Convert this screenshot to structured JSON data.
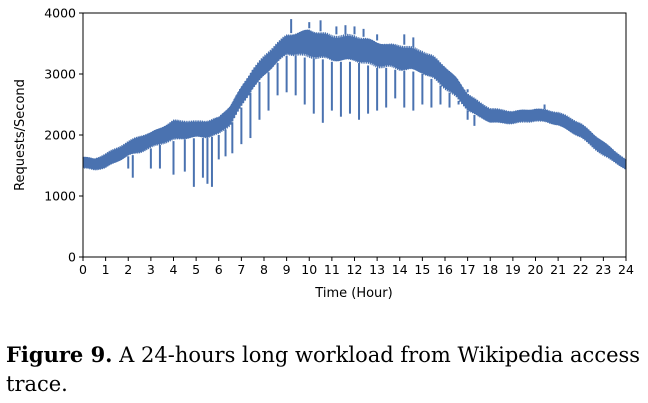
{
  "chart_data": {
    "type": "line",
    "title": "",
    "xlabel": "Time (Hour)",
    "ylabel": "Requests/Second",
    "xlim": [
      0,
      24
    ],
    "ylim": [
      0,
      4000
    ],
    "x_ticks": [
      "0",
      "1",
      "2",
      "3",
      "4",
      "5",
      "6",
      "7",
      "8",
      "9",
      "10",
      "11",
      "12",
      "13",
      "14",
      "15",
      "16",
      "17",
      "18",
      "19",
      "20",
      "21",
      "22",
      "23",
      "24"
    ],
    "y_ticks": [
      "0",
      "1000",
      "2000",
      "3000",
      "4000"
    ],
    "grid": false,
    "color": "#4a72b0",
    "series": [
      {
        "name": "",
        "x": [
          0,
          0.5,
          1,
          1.5,
          2,
          2.5,
          3,
          3.5,
          4,
          4.5,
          5,
          5.5,
          6,
          6.5,
          7,
          7.5,
          8,
          8.5,
          9,
          9.5,
          10,
          10.5,
          11,
          11.5,
          12,
          12.5,
          13,
          13.5,
          14,
          14.5,
          15,
          15.5,
          16,
          16.5,
          17,
          17.5,
          18,
          18.5,
          19,
          19.5,
          20,
          20.5,
          21,
          21.5,
          22,
          22.5,
          23,
          23.5,
          24
        ],
        "upper": [
          1650,
          1620,
          1700,
          1800,
          1900,
          2000,
          2050,
          2150,
          2250,
          2250,
          2230,
          2250,
          2300,
          2500,
          2800,
          3100,
          3300,
          3500,
          3650,
          3700,
          3750,
          3700,
          3650,
          3650,
          3650,
          3600,
          3550,
          3500,
          3500,
          3450,
          3400,
          3300,
          3150,
          2950,
          2700,
          2550,
          2450,
          2420,
          2400,
          2420,
          2440,
          2420,
          2380,
          2300,
          2200,
          2050,
          1900,
          1750,
          1600
        ],
        "lower": [
          1450,
          1420,
          1450,
          1550,
          1650,
          1700,
          1780,
          1850,
          1900,
          1930,
          1950,
          1950,
          2000,
          2150,
          2450,
          2750,
          2950,
          3150,
          3300,
          3300,
          3250,
          3250,
          3200,
          3200,
          3200,
          3150,
          3100,
          3100,
          3050,
          3050,
          3000,
          2900,
          2750,
          2600,
          2400,
          2280,
          2200,
          2180,
          2180,
          2200,
          2220,
          2200,
          2150,
          2050,
          1950,
          1800,
          1650,
          1550,
          1420
        ],
        "dips": [
          [
            2,
            1450
          ],
          [
            2.2,
            1300
          ],
          [
            3,
            1450
          ],
          [
            3.4,
            1450
          ],
          [
            4,
            1350
          ],
          [
            4.5,
            1400
          ],
          [
            4.9,
            1150
          ],
          [
            5.3,
            1300
          ],
          [
            5.5,
            1200
          ],
          [
            5.7,
            1150
          ],
          [
            6,
            1600
          ],
          [
            6.3,
            1650
          ],
          [
            6.6,
            1700
          ],
          [
            7,
            1850
          ],
          [
            7.4,
            1950
          ],
          [
            7.8,
            2250
          ],
          [
            8.2,
            2400
          ],
          [
            8.6,
            2650
          ],
          [
            9,
            2700
          ],
          [
            9.4,
            2650
          ],
          [
            9.8,
            2500
          ],
          [
            10.2,
            2350
          ],
          [
            10.6,
            2200
          ],
          [
            11,
            2400
          ],
          [
            11.4,
            2300
          ],
          [
            11.8,
            2350
          ],
          [
            12.2,
            2250
          ],
          [
            12.6,
            2350
          ],
          [
            13,
            2400
          ],
          [
            13.4,
            2450
          ],
          [
            13.8,
            2600
          ],
          [
            14.2,
            2450
          ],
          [
            14.6,
            2400
          ],
          [
            15,
            2500
          ],
          [
            15.4,
            2450
          ],
          [
            15.8,
            2500
          ],
          [
            16.2,
            2450
          ],
          [
            16.6,
            2500
          ],
          [
            17,
            2250
          ],
          [
            17.3,
            2150
          ]
        ],
        "spikes": [
          [
            9.2,
            3900
          ],
          [
            10,
            3850
          ],
          [
            10.5,
            3880
          ],
          [
            11.2,
            3780
          ],
          [
            11.6,
            3800
          ],
          [
            12,
            3780
          ],
          [
            12.4,
            3740
          ],
          [
            13,
            3650
          ],
          [
            14.2,
            3650
          ],
          [
            14.6,
            3600
          ],
          [
            17,
            2750
          ],
          [
            20.4,
            2500
          ]
        ]
      }
    ]
  },
  "caption": {
    "label": "Figure 9.",
    "text": " A 24-hours long workload from Wikipedia access trace."
  }
}
